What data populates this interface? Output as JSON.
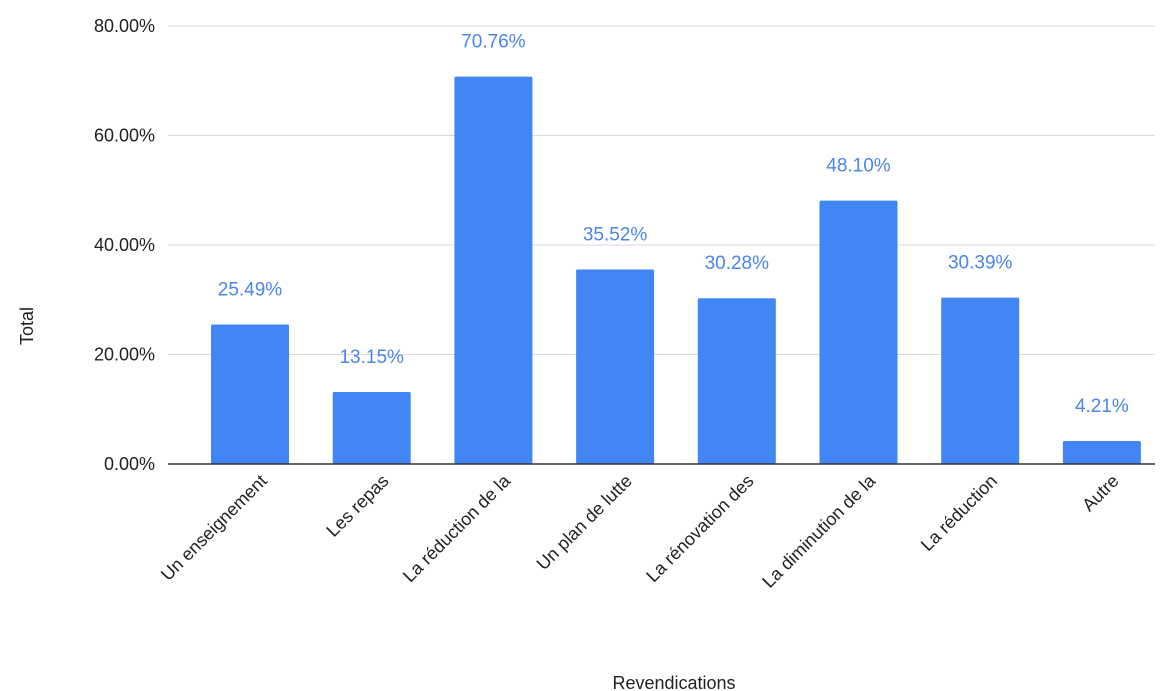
{
  "chart_data": {
    "type": "bar",
    "title": "",
    "xlabel": "Revendications",
    "ylabel": "Total",
    "ylim": [
      0,
      80
    ],
    "yticks": [
      0,
      20,
      40,
      60,
      80
    ],
    "ytick_labels": [
      "0.00%",
      "20.00%",
      "40.00%",
      "60.00%",
      "80.00%"
    ],
    "grid": true,
    "legend": "none",
    "categories": [
      "Un enseignement",
      "Les repas",
      "La réduction de la",
      "Un plan de lutte",
      "La rénovation des",
      "La diminution de la",
      "La réduction",
      "Autre"
    ],
    "values": [
      25.49,
      13.15,
      70.76,
      35.52,
      30.28,
      48.1,
      30.39,
      4.21
    ],
    "data_labels": [
      "25.49%",
      "13.15%",
      "70.76%",
      "35.52%",
      "30.28%",
      "48.10%",
      "30.39%",
      "4.21%"
    ],
    "colors": {
      "bar": "#4285f4",
      "data_label": "#4a86e8",
      "grid": "#d9d9d9",
      "axis": "#333333"
    }
  }
}
